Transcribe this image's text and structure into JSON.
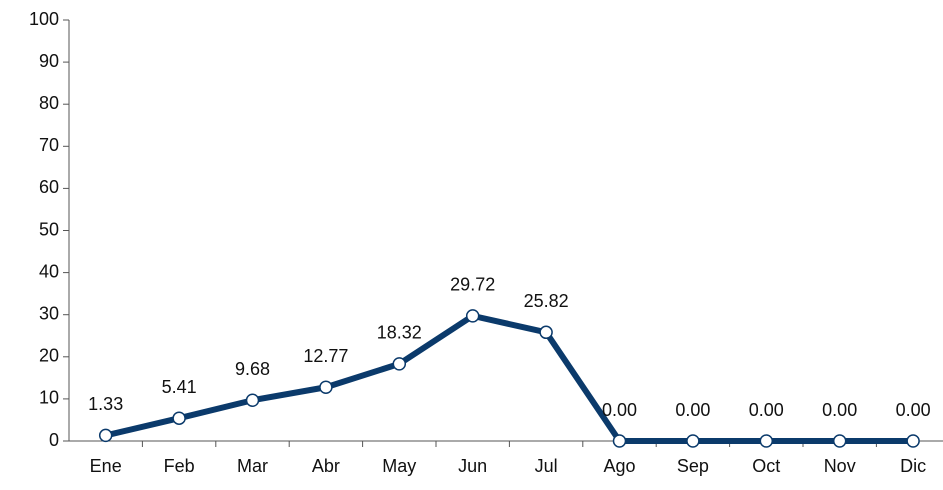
{
  "chart_data": {
    "type": "line",
    "categories": [
      "Ene",
      "Feb",
      "Mar",
      "Abr",
      "May",
      "Jun",
      "Jul",
      "Ago",
      "Sep",
      "Oct",
      "Nov",
      "Dic"
    ],
    "series": [
      {
        "color": "#0b3a6b",
        "values": [
          1.33,
          5.41,
          9.68,
          12.77,
          18.32,
          29.72,
          25.82,
          0,
          0,
          0,
          0,
          0
        ],
        "value_labels": [
          "1.33",
          "5.41",
          "9.68",
          "12.77",
          "18.32",
          "29.72",
          "25.82",
          "0.00",
          "0.00",
          "0.00",
          "0.00",
          "0.00"
        ]
      }
    ],
    "ylim": [
      0,
      100
    ],
    "yticks": [
      0,
      10,
      20,
      30,
      40,
      50,
      60,
      70,
      80,
      90,
      100
    ],
    "grid": false
  }
}
